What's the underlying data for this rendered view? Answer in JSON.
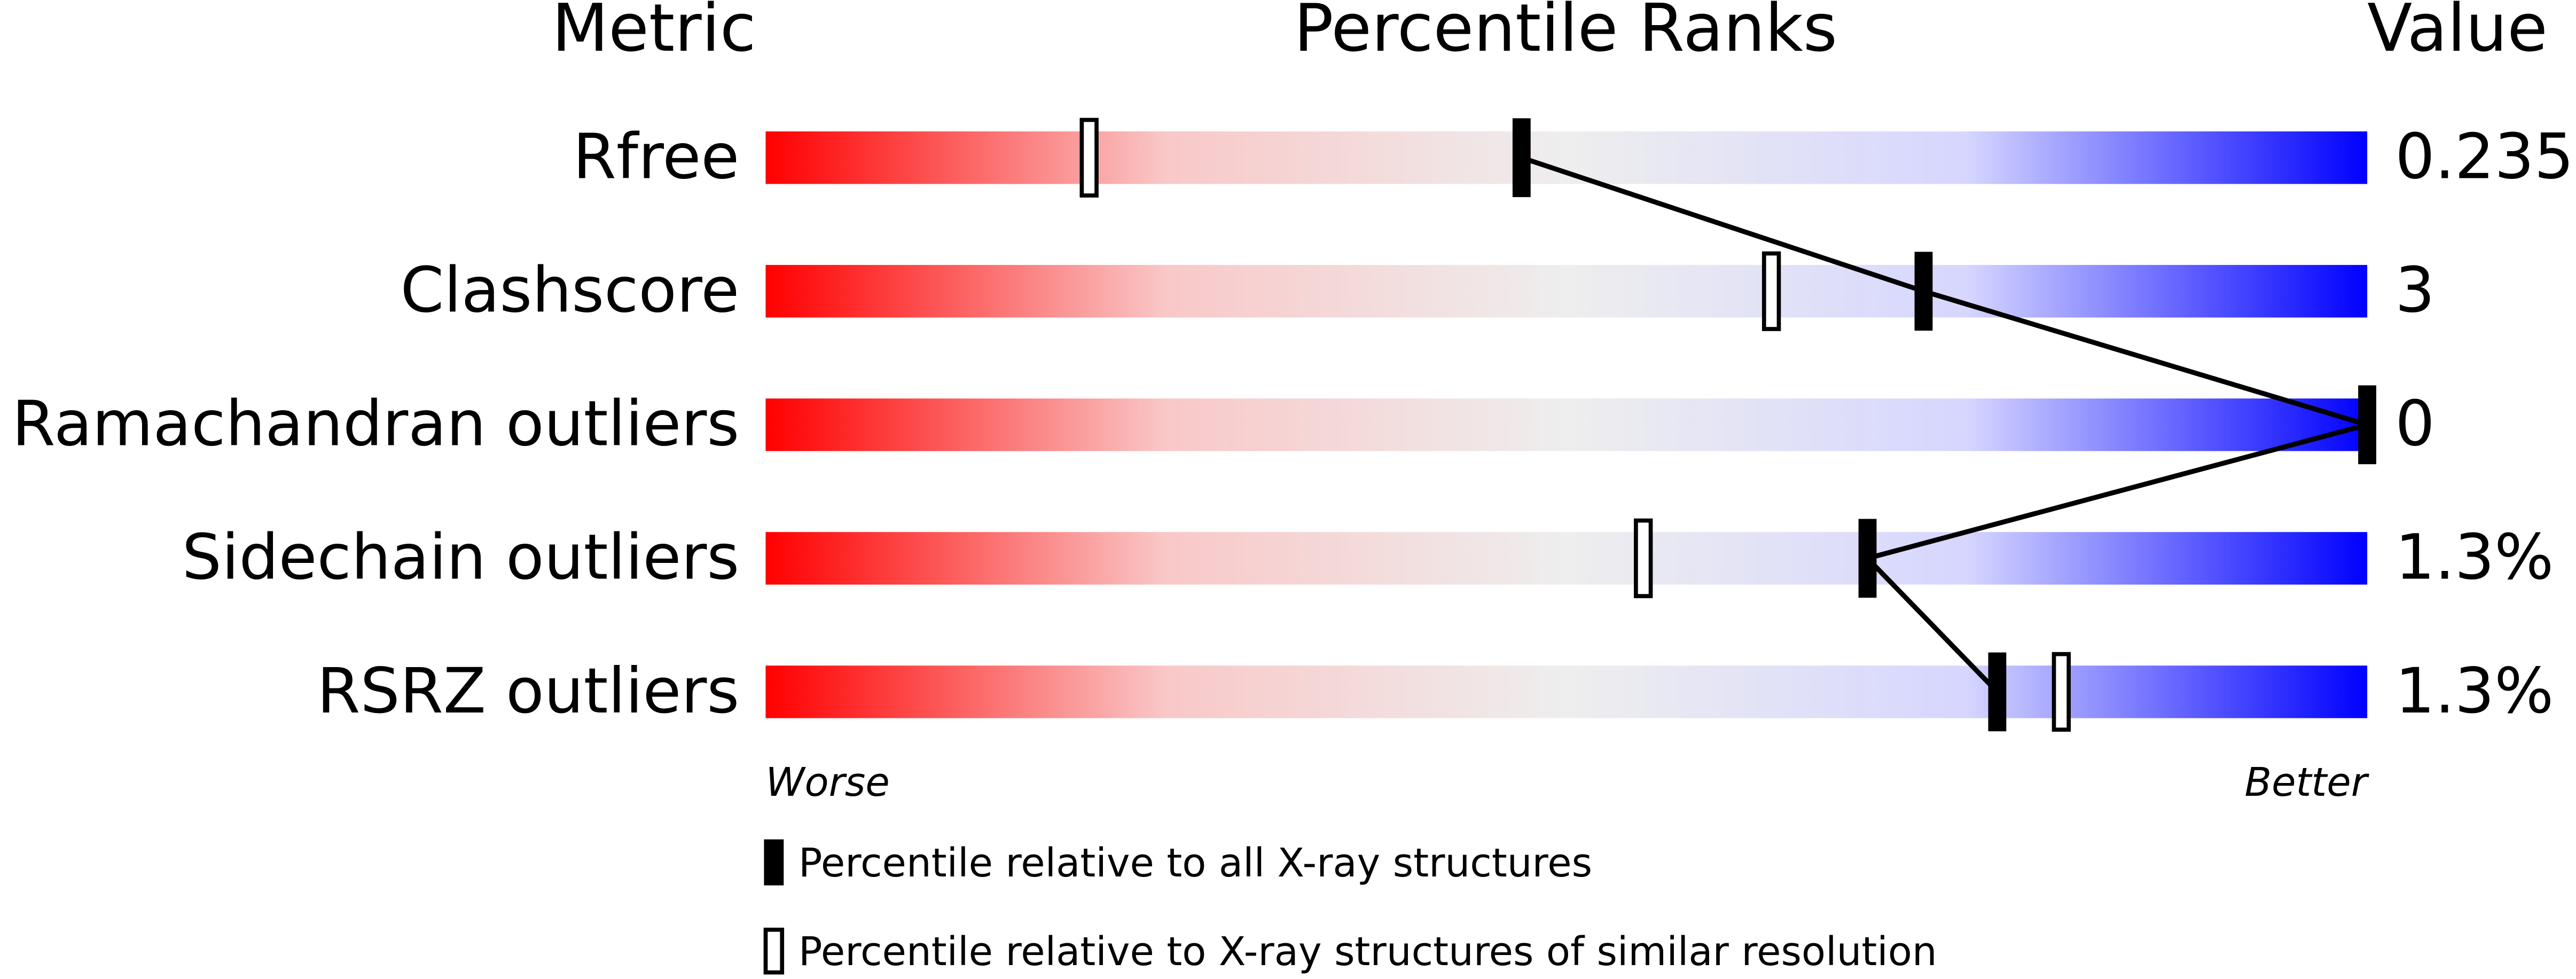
{
  "chart_data": {
    "type": "percentile",
    "headers": {
      "metric": "Metric",
      "ranks": "Percentile Ranks",
      "value": "Value"
    },
    "categories": [
      "Rfree",
      "Clashscore",
      "Ramachandran outliers",
      "Sidechain outliers",
      "RSRZ outliers"
    ],
    "metric_values": [
      "0.235",
      "3",
      "0",
      "1.3%",
      "1.3%"
    ],
    "xlim": [
      0,
      100
    ],
    "scale_labels": {
      "worse": "Worse",
      "better": "Better"
    },
    "gradient": [
      "#ff0000",
      "#f9c8c8",
      "#eeeeee",
      "#d6d6ff",
      "#0000ff"
    ],
    "series": [
      {
        "name": "Percentile relative to all X-ray structures",
        "style": "filled",
        "color": "#000000",
        "values": [
          47.2,
          72.3,
          100,
          68.8,
          76.9
        ]
      },
      {
        "name": "Percentile relative to X-ray structures of similar resolution",
        "style": "open",
        "color": "#000000",
        "values": [
          20.2,
          62.8,
          null,
          54.8,
          80.9
        ]
      }
    ]
  }
}
